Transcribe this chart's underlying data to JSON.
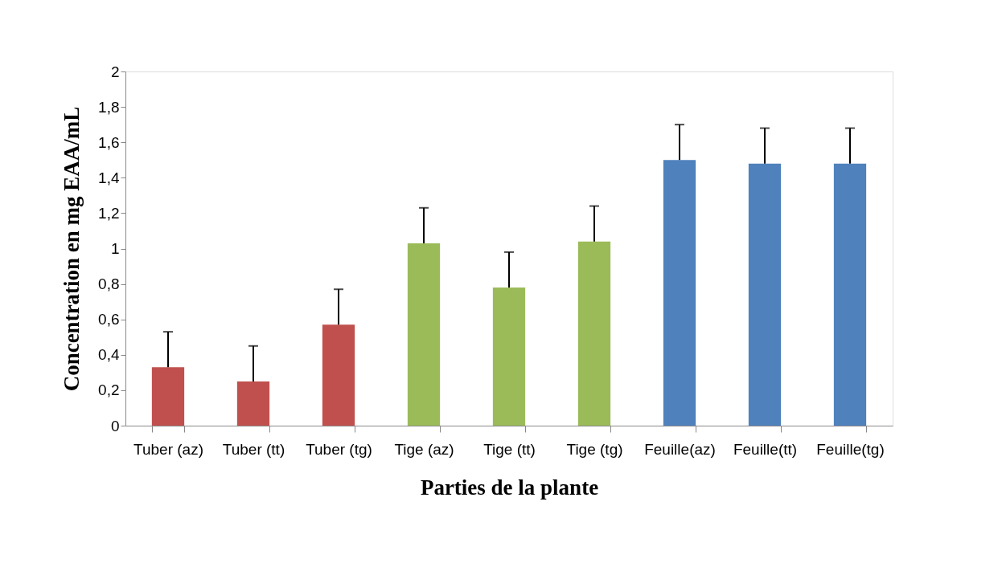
{
  "chart_data": {
    "type": "bar",
    "xlabel": "Parties de la plante",
    "ylabel": "Concentration en mg EAA/mL",
    "categories": [
      "Tuber (az)",
      "Tuber (tt)",
      "Tuber (tg)",
      "Tige (az)",
      "Tige (tt)",
      "Tige (tg)",
      "Feuille(az)",
      "Feuille(tt)",
      "Feuille(tg)"
    ],
    "values": [
      0.33,
      0.25,
      0.57,
      1.03,
      0.78,
      1.04,
      1.5,
      1.48,
      1.48
    ],
    "errors": [
      [
        0.33,
        0.53
      ],
      [
        0.25,
        0.45
      ],
      [
        0.57,
        0.77
      ],
      [
        1.03,
        1.23
      ],
      [
        0.78,
        0.98
      ],
      [
        1.04,
        1.24
      ],
      [
        1.5,
        1.7
      ],
      [
        1.48,
        1.68
      ],
      [
        1.48,
        1.68
      ]
    ],
    "colors": [
      "#c0504d",
      "#c0504d",
      "#c0504d",
      "#9bbb59",
      "#9bbb59",
      "#9bbb59",
      "#4f81bd",
      "#4f81bd",
      "#4f81bd"
    ],
    "ylim": [
      0,
      2
    ],
    "yticks": [
      0,
      {
        "value": 0.2,
        "label": "0,2"
      },
      {
        "value": 0.4,
        "label": "0,4"
      },
      {
        "value": 0.6,
        "label": "0,6"
      },
      {
        "value": 0.8,
        "label": "0,8"
      },
      1,
      {
        "value": 1.2,
        "label": "1,2"
      },
      {
        "value": 1.4,
        "label": "1,4"
      },
      {
        "value": 1.6,
        "label": "1,6"
      },
      {
        "value": 1.8,
        "label": "1,8"
      },
      2
    ],
    "grid": false
  }
}
